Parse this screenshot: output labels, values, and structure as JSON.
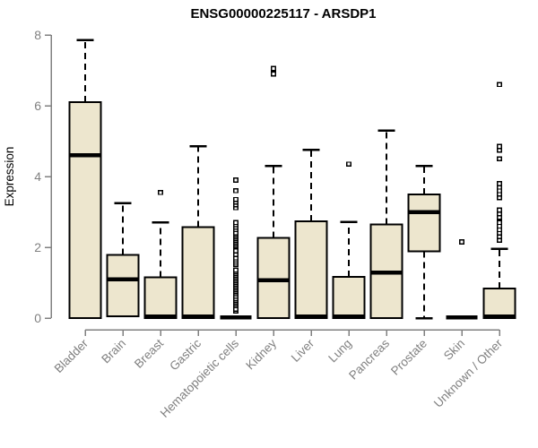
{
  "chart_data": {
    "type": "boxplot",
    "title": "ENSG00000225117 - ARSDP1",
    "ylabel": "Expression",
    "xlabel": "",
    "ylim": [
      0,
      8
    ],
    "yticks": [
      0,
      2,
      4,
      6,
      8
    ],
    "grid": false,
    "legend": false,
    "categories": [
      "Bladder",
      "Brain",
      "Breast",
      "Gastric",
      "Hematopoietic cells",
      "Kidney",
      "Liver",
      "Lung",
      "Pancreas",
      "Prostate",
      "Skin",
      "Unknown / Other"
    ],
    "series": [
      {
        "category": "Bladder",
        "whisker_low": 0,
        "q1": 0,
        "median": 4.6,
        "q3": 6.1,
        "whisker_high": 7.85,
        "outliers": []
      },
      {
        "category": "Brain",
        "whisker_low": 0.05,
        "q1": 0.05,
        "median": 1.1,
        "q3": 1.78,
        "whisker_high": 3.25,
        "outliers": []
      },
      {
        "category": "Breast",
        "whisker_low": 0,
        "q1": 0,
        "median": 0.05,
        "q3": 1.15,
        "whisker_high": 2.7,
        "outliers": [
          3.55
        ]
      },
      {
        "category": "Gastric",
        "whisker_low": 0,
        "q1": 0,
        "median": 0.05,
        "q3": 2.57,
        "whisker_high": 4.85,
        "outliers": []
      },
      {
        "category": "Hematopoietic cells",
        "whisker_low": 0,
        "q1": 0,
        "median": 0.02,
        "q3": 0,
        "whisker_high": 0,
        "outliers": [
          0.2,
          0.25,
          0.35,
          0.4,
          0.45,
          0.5,
          0.55,
          0.6,
          0.65,
          0.7,
          0.75,
          0.8,
          0.85,
          0.9,
          0.95,
          1.0,
          1.05,
          1.1,
          1.15,
          1.2,
          1.25,
          1.3,
          1.35,
          1.5,
          1.55,
          1.6,
          1.65,
          1.7,
          1.8,
          1.9,
          2.05,
          2.1,
          2.15,
          2.2,
          2.25,
          2.3,
          2.35,
          2.4,
          2.5,
          2.55,
          2.6,
          2.65,
          2.7,
          3.12,
          3.2,
          3.28,
          3.35,
          3.6,
          3.9
        ]
      },
      {
        "category": "Kidney",
        "whisker_low": 0,
        "q1": 0,
        "median": 1.07,
        "q3": 2.27,
        "whisker_high": 4.3,
        "outliers": [
          6.9,
          7.05
        ]
      },
      {
        "category": "Liver",
        "whisker_low": 0,
        "q1": 0,
        "median": 0.05,
        "q3": 2.73,
        "whisker_high": 4.75,
        "outliers": []
      },
      {
        "category": "Lung",
        "whisker_low": 0,
        "q1": 0,
        "median": 0.05,
        "q3": 1.17,
        "whisker_high": 2.72,
        "outliers": [
          4.35
        ]
      },
      {
        "category": "Pancreas",
        "whisker_low": 0,
        "q1": 0,
        "median": 1.28,
        "q3": 2.65,
        "whisker_high": 5.3,
        "outliers": []
      },
      {
        "category": "Prostate",
        "whisker_low": 0,
        "q1": 1.88,
        "median": 3.0,
        "q3": 3.5,
        "whisker_high": 4.3,
        "outliers": []
      },
      {
        "category": "Skin",
        "whisker_low": 0,
        "q1": 0,
        "median": 0.02,
        "q3": 0,
        "whisker_high": 0,
        "outliers": [
          2.15
        ]
      },
      {
        "category": "Unknown / Other",
        "whisker_low": 0,
        "q1": 0,
        "median": 0.05,
        "q3": 0.84,
        "whisker_high": 1.95,
        "outliers": [
          2.2,
          2.3,
          2.4,
          2.5,
          2.6,
          2.7,
          2.85,
          2.95,
          3.05,
          3.4,
          3.5,
          3.6,
          3.7,
          3.8,
          4.5,
          4.75,
          4.85,
          6.6
        ]
      }
    ],
    "colors": {
      "box_fill": "#EDE6CE",
      "box_stroke": "#000000",
      "median": "#000000",
      "whisker": "#000000",
      "outlier": "#000000",
      "axis": "#808080",
      "tick_label": "#808080",
      "title": "#000000",
      "background": "#FFFFFF"
    }
  }
}
